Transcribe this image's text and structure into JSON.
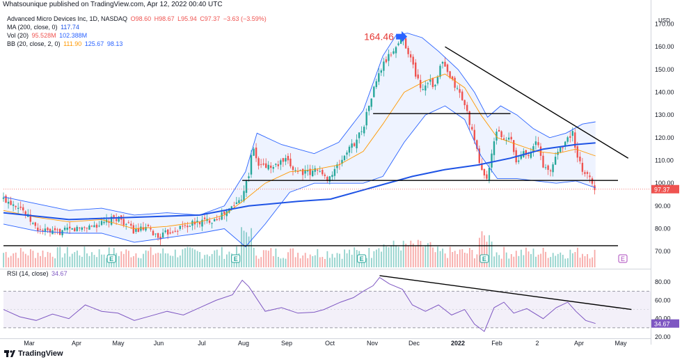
{
  "header": {
    "publisher": "Whatsounique published on TradingView.com, Apr 12, 2022 00:40 UTC"
  },
  "legend": {
    "line1": {
      "label": "Advanced Micro Devices Inc, 1D, NASDAQ",
      "o": "O98.60",
      "h": "H98.67",
      "l": "L95.94",
      "c": "C97.37",
      "chg": "−3.63 (−3.59%)"
    },
    "line2": {
      "label": "MA (200, close, 0)",
      "v": "117.74"
    },
    "line3": {
      "label": "Vol (20)",
      "v1": "95.528M",
      "v2": "102.388M"
    },
    "line4": {
      "label": "BB (20, close, 2, 0)",
      "v1": "111.90",
      "v2": "125.67",
      "v3": "98.13"
    },
    "rsi_label": "RSI (14, close)",
    "rsi_value": "34.67"
  },
  "footer": {
    "brand": "TradingView"
  },
  "colors": {
    "up": "#26a69a",
    "down": "#ef5350",
    "ma200": "#1e53e5",
    "bb_basis": "#ff9800",
    "bb_band": "#2962ff",
    "rsi": "#7e57c2"
  },
  "chart_data": [
    {
      "type": "candlestick",
      "title": "Advanced Micro Devices Inc, 1D, NASDAQ",
      "currency": "USD",
      "ylim": [
        63,
        172
      ],
      "y_ticks": [
        "170.00",
        "160.00",
        "150.00",
        "140.00",
        "130.00",
        "120.00",
        "110.00",
        "100.00",
        "90.00",
        "80.00",
        "70.00"
      ],
      "x_ticks": [
        "Mar",
        "Apr",
        "May",
        "Jun",
        "Jul",
        "Aug",
        "Sep",
        "Oct",
        "Nov",
        "Dec",
        "2022",
        "Feb",
        "2",
        "Apr",
        "May"
      ],
      "close_path": [
        [
          0,
          93
        ],
        [
          10,
          90
        ],
        [
          20,
          80
        ],
        [
          30,
          78
        ],
        [
          45,
          80
        ],
        [
          60,
          82
        ],
        [
          70,
          85
        ],
        [
          80,
          79
        ],
        [
          88,
          80
        ],
        [
          95,
          76
        ],
        [
          102,
          79
        ],
        [
          110,
          81
        ],
        [
          120,
          83
        ],
        [
          128,
          84
        ],
        [
          136,
          87
        ],
        [
          145,
          93
        ],
        [
          150,
          104
        ],
        [
          152,
          116
        ],
        [
          156,
          108
        ],
        [
          165,
          107
        ],
        [
          172,
          110
        ],
        [
          178,
          106
        ],
        [
          188,
          104
        ],
        [
          192,
          107
        ],
        [
          196,
          102
        ],
        [
          200,
          103
        ],
        [
          205,
          108
        ],
        [
          210,
          114
        ],
        [
          215,
          118
        ],
        [
          220,
          125
        ],
        [
          225,
          138
        ],
        [
          228,
          145
        ],
        [
          232,
          152
        ],
        [
          238,
          158
        ],
        [
          244,
          164
        ],
        [
          248,
          157
        ],
        [
          252,
          148
        ],
        [
          256,
          141
        ],
        [
          260,
          146
        ],
        [
          264,
          142
        ],
        [
          268,
          154
        ],
        [
          272,
          147
        ],
        [
          276,
          143
        ],
        [
          280,
          138
        ],
        [
          284,
          130
        ],
        [
          288,
          118
        ],
        [
          292,
          107
        ],
        [
          295,
          101
        ],
        [
          298,
          110
        ],
        [
          302,
          125
        ],
        [
          306,
          118
        ],
        [
          310,
          120
        ],
        [
          314,
          108
        ],
        [
          318,
          115
        ],
        [
          322,
          112
        ],
        [
          326,
          119
        ],
        [
          330,
          108
        ],
        [
          334,
          104
        ],
        [
          338,
          113
        ],
        [
          342,
          117
        ],
        [
          346,
          120
        ],
        [
          348,
          123
        ],
        [
          350,
          112
        ],
        [
          354,
          106
        ],
        [
          358,
          103
        ],
        [
          362,
          97.4
        ]
      ],
      "ma200_path": [
        [
          0,
          87
        ],
        [
          40,
          84
        ],
        [
          80,
          85
        ],
        [
          120,
          86
        ],
        [
          150,
          90
        ],
        [
          180,
          92
        ],
        [
          200,
          93
        ],
        [
          215,
          96
        ],
        [
          230,
          99
        ],
        [
          250,
          103
        ],
        [
          270,
          106
        ],
        [
          290,
          108
        ],
        [
          310,
          111
        ],
        [
          330,
          115
        ],
        [
          350,
          117
        ],
        [
          362,
          117.7
        ]
      ],
      "bb_upper": [
        [
          0,
          94
        ],
        [
          20,
          91
        ],
        [
          40,
          88
        ],
        [
          60,
          89
        ],
        [
          80,
          86
        ],
        [
          100,
          87
        ],
        [
          120,
          86
        ],
        [
          135,
          90
        ],
        [
          148,
          105
        ],
        [
          155,
          122
        ],
        [
          170,
          117
        ],
        [
          190,
          113
        ],
        [
          205,
          118
        ],
        [
          220,
          132
        ],
        [
          232,
          156
        ],
        [
          240,
          165
        ],
        [
          247,
          166
        ],
        [
          256,
          164
        ],
        [
          266,
          158
        ],
        [
          278,
          150
        ],
        [
          288,
          140
        ],
        [
          296,
          129
        ],
        [
          304,
          134
        ],
        [
          314,
          130
        ],
        [
          324,
          124
        ],
        [
          334,
          120
        ],
        [
          344,
          122
        ],
        [
          354,
          126
        ],
        [
          362,
          127
        ]
      ],
      "bb_basis": [
        [
          0,
          88
        ],
        [
          20,
          85
        ],
        [
          40,
          83
        ],
        [
          60,
          84
        ],
        [
          80,
          80
        ],
        [
          100,
          81
        ],
        [
          120,
          83
        ],
        [
          135,
          86
        ],
        [
          148,
          93
        ],
        [
          160,
          100
        ],
        [
          175,
          105
        ],
        [
          190,
          106
        ],
        [
          205,
          108
        ],
        [
          220,
          114
        ],
        [
          232,
          126
        ],
        [
          245,
          140
        ],
        [
          258,
          145
        ],
        [
          270,
          148
        ],
        [
          282,
          142
        ],
        [
          292,
          130
        ],
        [
          302,
          120
        ],
        [
          314,
          117
        ],
        [
          326,
          114
        ],
        [
          338,
          113
        ],
        [
          350,
          115
        ],
        [
          362,
          112
        ]
      ],
      "bb_lower": [
        [
          0,
          82
        ],
        [
          20,
          79
        ],
        [
          40,
          78
        ],
        [
          60,
          78
        ],
        [
          80,
          74
        ],
        [
          100,
          76
        ],
        [
          120,
          78
        ],
        [
          135,
          80
        ],
        [
          148,
          72
        ],
        [
          160,
          82
        ],
        [
          175,
          96
        ],
        [
          190,
          100
        ],
        [
          205,
          100
        ],
        [
          220,
          100
        ],
        [
          232,
          103
        ],
        [
          245,
          118
        ],
        [
          258,
          130
        ],
        [
          270,
          134
        ],
        [
          282,
          128
        ],
        [
          292,
          112
        ],
        [
          302,
          102
        ],
        [
          314,
          102
        ],
        [
          326,
          101
        ],
        [
          338,
          100
        ],
        [
          350,
          101
        ],
        [
          362,
          98
        ]
      ],
      "horizontal_lines": [
        101.2,
        72.5,
        130.6
      ],
      "annotations": [
        {
          "text": "164.46",
          "x": 246,
          "y": 164.46
        }
      ],
      "trendline": [
        [
          270,
          160
        ],
        [
          382,
          111
        ]
      ],
      "last_price_label": "97.37"
    },
    {
      "type": "line",
      "title": "RSI (14, close)",
      "ylim": [
        20,
        90
      ],
      "y_ticks": [
        "80.00",
        "60.00",
        "40.00",
        "20.00"
      ],
      "bands": [
        30,
        70
      ],
      "series": [
        {
          "values": [
            [
              0,
              50
            ],
            [
              10,
              42
            ],
            [
              20,
              38
            ],
            [
              30,
              45
            ],
            [
              40,
              40
            ],
            [
              50,
              55
            ],
            [
              60,
              48
            ],
            [
              70,
              46
            ],
            [
              80,
              38
            ],
            [
              90,
              43
            ],
            [
              100,
              48
            ],
            [
              110,
              44
            ],
            [
              120,
              52
            ],
            [
              130,
              60
            ],
            [
              140,
              66
            ],
            [
              146,
              82
            ],
            [
              150,
              75
            ],
            [
              160,
              48
            ],
            [
              170,
              52
            ],
            [
              180,
              46
            ],
            [
              190,
              47
            ],
            [
              196,
              50
            ],
            [
              206,
              58
            ],
            [
              214,
              63
            ],
            [
              220,
              70
            ],
            [
              226,
              76
            ],
            [
              230,
              85
            ],
            [
              236,
              78
            ],
            [
              244,
              72
            ],
            [
              250,
              55
            ],
            [
              258,
              48
            ],
            [
              266,
              55
            ],
            [
              274,
              44
            ],
            [
              282,
              50
            ],
            [
              288,
              34
            ],
            [
              294,
              26
            ],
            [
              300,
              52
            ],
            [
              306,
              58
            ],
            [
              312,
              46
            ],
            [
              320,
              51
            ],
            [
              330,
              40
            ],
            [
              338,
              52
            ],
            [
              345,
              58
            ],
            [
              350,
              48
            ],
            [
              356,
              38
            ],
            [
              362,
              34.67
            ]
          ]
        }
      ],
      "trendline": [
        [
          230,
          87
        ],
        [
          384,
          50
        ]
      ]
    }
  ]
}
